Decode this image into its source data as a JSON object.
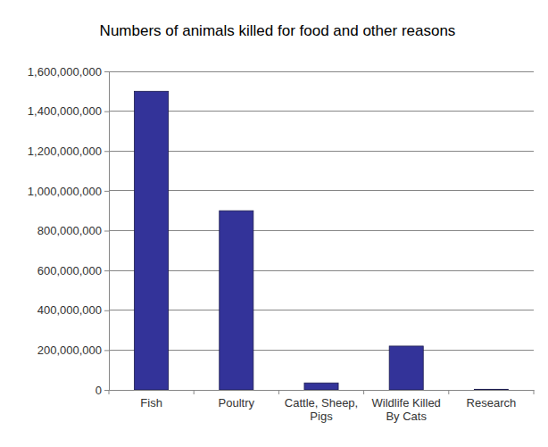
{
  "chart_data": {
    "type": "bar",
    "title": "Numbers of animals killed for food and other reasons",
    "categories": [
      "Fish",
      "Poultry",
      "Cattle, Sheep, Pigs",
      "Wildlife Killed By Cats",
      "Research"
    ],
    "values": [
      1500000000,
      900000000,
      35000000,
      220000000,
      3000000
    ],
    "color": "#333399",
    "ylim": [
      0,
      1600000000
    ],
    "yticks": [
      0,
      {
        "value": 200000000,
        "label": "200,000,000"
      },
      {
        "value": 400000000,
        "label": "400,000,000"
      },
      {
        "value": 600000000,
        "label": "600,000,000"
      },
      {
        "value": 800000000,
        "label": "800,000,000"
      },
      {
        "value": 1000000000,
        "label": "1,000,000,000"
      },
      {
        "value": 1200000000,
        "label": "1,200,000,000"
      },
      {
        "value": 1400000000,
        "label": "1,400,000,000"
      },
      {
        "value": 1600000000,
        "label": "1,600,000,000"
      }
    ],
    "grid": true
  }
}
